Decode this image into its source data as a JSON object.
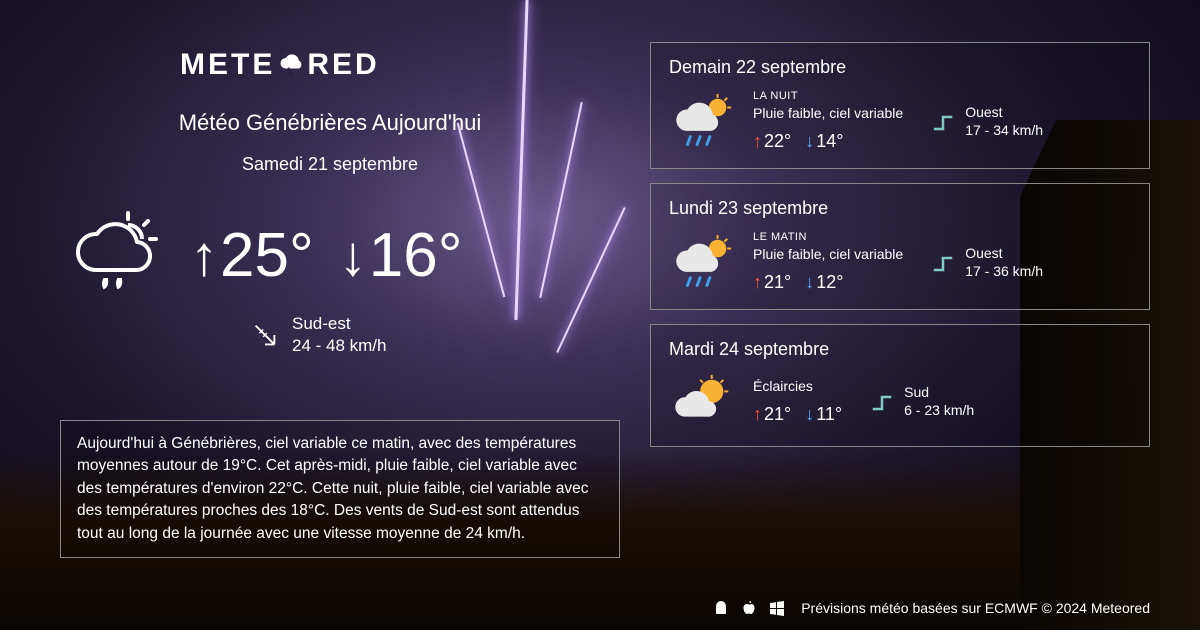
{
  "brand": {
    "name_left": "METE",
    "name_right": "RED"
  },
  "colors": {
    "text": "#ffffff",
    "border": "#888888",
    "hi_arrow": "#ff5533",
    "lo_arrow": "#55aaff",
    "wind_accent": "#7fc9c9",
    "sun": "#f9b233",
    "cloud": "#e8e8e8",
    "rain": "#3fa0e8"
  },
  "today": {
    "title": "Météo Génébrières Aujourd'hui",
    "date": "Samedi 21 septembre",
    "hi": "25°",
    "lo": "16°",
    "wind_dir": "Sud-est",
    "wind_speed": "24 - 48 km/h",
    "condition": "Pluie faible, ciel variable",
    "description": "Aujourd'hui à Génébrières, ciel variable ce matin, avec des températures moyennes autour de 19°C. Cet après-midi, pluie faible, ciel variable avec des températures d'environ 22°C. Cette nuit, pluie faible, ciel variable avec des températures proches des 18°C. Des vents de Sud-est sont attendus tout au long de la journée avec une vitesse moyenne de 24 km/h."
  },
  "forecast": [
    {
      "date": "Demain 22 septembre",
      "period": "LA NUIT",
      "condition": "Pluie faible, ciel variable",
      "hi": "22°",
      "lo": "14°",
      "wind_dir": "Ouest",
      "wind_speed": "17 - 34 km/h",
      "icon": "rain-sun"
    },
    {
      "date": "Lundi 23 septembre",
      "period": "LE MATIN",
      "condition": "Pluie faible, ciel variable",
      "hi": "21°",
      "lo": "12°",
      "wind_dir": "Ouest",
      "wind_speed": "17 - 36 km/h",
      "icon": "rain-sun"
    },
    {
      "date": "Mardi 24 septembre",
      "period": "",
      "condition": "Éclaircies",
      "hi": "21°",
      "lo": "11°",
      "wind_dir": "Sud",
      "wind_speed": "6 - 23 km/h",
      "icon": "sun-cloud"
    }
  ],
  "footer": {
    "text": "Prévisions météo basées sur ECMWF © 2024 Meteored"
  }
}
